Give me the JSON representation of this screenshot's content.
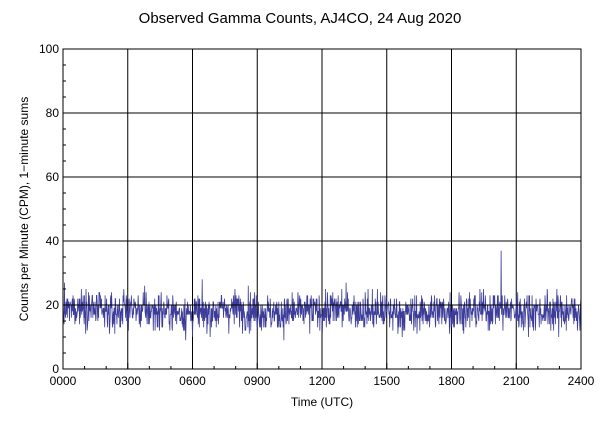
{
  "chart_data": {
    "type": "line",
    "title": "Observed Gamma Counts, AJ4CO, 24 Aug 2020",
    "xlabel": "Time (UTC)",
    "ylabel": "Counts per Minute (CPM), 1−minute sums",
    "xlim": [
      0,
      24
    ],
    "ylim": [
      0,
      100
    ],
    "x_ticks": [
      0,
      3,
      6,
      9,
      12,
      15,
      18,
      21,
      24
    ],
    "x_tick_labels": [
      "0000",
      "0300",
      "0600",
      "0900",
      "1200",
      "1500",
      "1800",
      "2100",
      "2400"
    ],
    "y_ticks": [
      0,
      20,
      40,
      60,
      80,
      100
    ],
    "y_tick_labels": [
      "0",
      "20",
      "40",
      "60",
      "80",
      "100"
    ],
    "grid": true,
    "series": [
      {
        "color": "#3d3d99",
        "x_unit": "hours UTC",
        "x_start": 0,
        "x_end": 24,
        "points_per_minute": 1,
        "values_hourly_sample": [
          18,
          20,
          17,
          19,
          18,
          18,
          17,
          18,
          19,
          18,
          17,
          18,
          18,
          19,
          18,
          18,
          17,
          18,
          18,
          18,
          19,
          18,
          18,
          18,
          18
        ],
        "mean": 18,
        "range_min": 5,
        "range_max": 37,
        "peak": {
          "x": 20.3,
          "y": 37
        }
      }
    ],
    "reference_line": {
      "y": 20,
      "color": "#000000"
    }
  }
}
